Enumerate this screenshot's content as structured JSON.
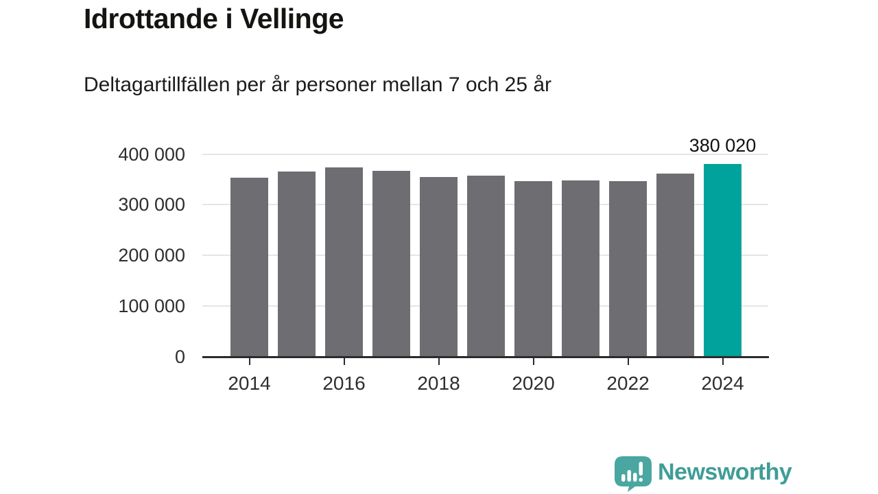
{
  "header": {
    "title": "Idrottande i Vellinge",
    "subtitle": "Deltagartillfällen per år personer mellan 7 och 25 år"
  },
  "chart_data": {
    "type": "bar",
    "title": "Idrottande i Vellinge",
    "subtitle": "Deltagartillfällen per år personer mellan 7 och 25 år",
    "categories": [
      2014,
      2015,
      2016,
      2017,
      2018,
      2019,
      2020,
      2021,
      2022,
      2023,
      2024
    ],
    "values": [
      353000,
      365000,
      373000,
      367000,
      354000,
      358000,
      347000,
      348000,
      347000,
      361000,
      380020
    ],
    "highlight_index": 10,
    "highlight_label": "380 020",
    "xlabel": "",
    "ylabel": "",
    "ylim": [
      0,
      400000
    ],
    "y_ticks": [
      {
        "value": 0,
        "label": "0"
      },
      {
        "value": 100000,
        "label": "100 000"
      },
      {
        "value": 200000,
        "label": "200 000"
      },
      {
        "value": 300000,
        "label": "300 000"
      },
      {
        "value": 400000,
        "label": "400 000"
      }
    ],
    "x_tick_labels": [
      "2014",
      "2016",
      "2018",
      "2020",
      "2022",
      "2024"
    ],
    "grid": "horizontal-only",
    "legend": "none",
    "colors": {
      "bar": "#6d6d72",
      "highlight": "#00a39b",
      "gridline": "#e5e5e5",
      "axis": "#2b2b2b",
      "tick_text": "#2e2e2e",
      "label_text": "#111111"
    }
  },
  "footer": {
    "brand": "Newsworthy",
    "brand_color": "#3f9d97",
    "logo_color": "#4aa6a0",
    "logo_icon": "newsworthy-speech-bubble-bar-chart-icon"
  }
}
